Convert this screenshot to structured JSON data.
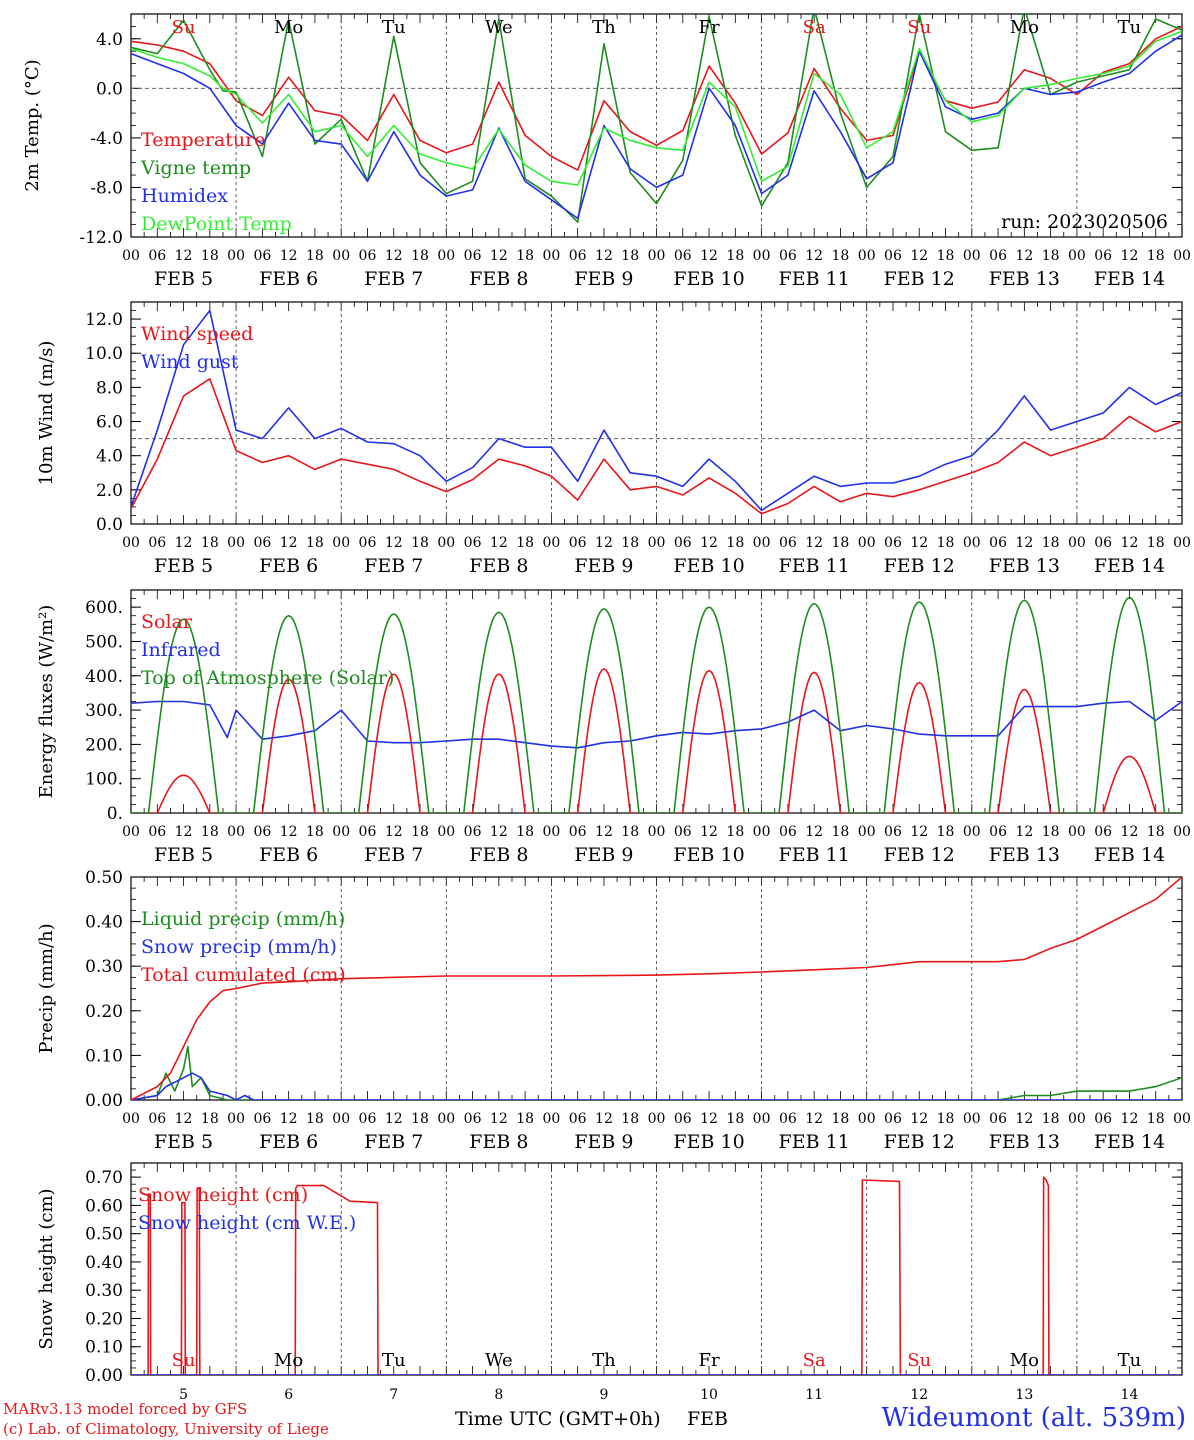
{
  "meta": {
    "run_label": "run: 2023020506",
    "model_credit": "MARv3.13 model forced by GFS",
    "lab_credit": "(c) Lab. of Climatology, University of Liege",
    "station": "Wideumont (alt. 539m)",
    "x_title": "Time UTC (GMT+0h)",
    "x_month": "FEB"
  },
  "colors": {
    "red": "#e8161a",
    "green": "#1f8c1f",
    "blue": "#2230e8",
    "lightgreen": "#33ee33",
    "grid": "#555555"
  },
  "time_axis": {
    "hour_labels": [
      "00",
      "06",
      "12",
      "18"
    ],
    "final_hour_label": "00",
    "date_labels": [
      "FEB  5",
      "FEB  6",
      "FEB  7",
      "FEB  8",
      "FEB  9",
      "FEB 10",
      "FEB 11",
      "FEB 12",
      "FEB 13",
      "FEB 14"
    ],
    "weekdays": [
      "Su",
      "Mo",
      "Tu",
      "We",
      "Th",
      "Fr",
      "Sa",
      "Su",
      "Mo",
      "Tu"
    ],
    "weekday_colors": [
      "red",
      "black",
      "black",
      "black",
      "black",
      "black",
      "red",
      "red",
      "black",
      "black"
    ],
    "bottom_day_numbers": [
      "5",
      "6",
      "7",
      "8",
      "9",
      "10",
      "11",
      "12",
      "13",
      "14"
    ]
  },
  "chart_data": [
    {
      "type": "line",
      "ylabel": "2m Temp. (°C)",
      "ylim": [
        -12,
        6
      ],
      "yticks": [
        "4.0",
        "0.0",
        "-4.0",
        "-8.0",
        "-12.0"
      ],
      "ytick_values": [
        4,
        0,
        -4,
        -8,
        -12
      ],
      "reference_line": 0,
      "x_unit": "hours since FEB 5 00 UTC",
      "series": [
        {
          "name": "Temperature",
          "color": "red",
          "x": [
            0,
            6,
            12,
            18,
            21,
            24,
            30,
            36,
            42,
            48,
            54,
            60,
            66,
            72,
            78,
            84,
            90,
            96,
            102,
            108,
            114,
            120,
            126,
            132,
            138,
            144,
            150,
            156,
            162,
            168,
            174,
            180,
            186,
            192,
            198,
            204,
            210,
            216,
            222,
            228,
            234,
            240
          ],
          "y": [
            3.8,
            3.5,
            3.0,
            2.0,
            0.5,
            -1.0,
            -2.2,
            0.9,
            -1.8,
            -2.2,
            -4.2,
            -0.5,
            -4.2,
            -5.2,
            -4.5,
            0.5,
            -3.8,
            -5.5,
            -6.6,
            -1.0,
            -3.5,
            -4.6,
            -3.4,
            1.8,
            -1.2,
            -5.3,
            -3.6,
            1.6,
            -1.6,
            -4.2,
            -3.8,
            3.0,
            -1.0,
            -1.6,
            -1.1,
            1.5,
            0.8,
            -0.5,
            1.3,
            2.0,
            4.0,
            5.0
          ]
        },
        {
          "name": "Vigne temp",
          "color": "green",
          "x": [
            0,
            6,
            12,
            18,
            21,
            24,
            30,
            36,
            42,
            48,
            54,
            60,
            66,
            72,
            78,
            84,
            90,
            96,
            102,
            108,
            114,
            120,
            126,
            132,
            138,
            144,
            150,
            156,
            162,
            168,
            174,
            180,
            186,
            192,
            198,
            204,
            210,
            216,
            222,
            228,
            234,
            240
          ],
          "y": [
            3.3,
            2.8,
            5.5,
            1.5,
            -0.2,
            -0.3,
            -5.5,
            5.5,
            -4.5,
            -2.5,
            -7.5,
            4.2,
            -6.0,
            -8.5,
            -7.5,
            5.6,
            -7.3,
            -8.7,
            -10.8,
            3.6,
            -6.8,
            -9.3,
            -5.8,
            5.8,
            -3.8,
            -9.5,
            -6.0,
            6.5,
            -2.0,
            -8.0,
            -5.5,
            6.0,
            -3.5,
            -5.0,
            -4.8,
            6.5,
            -0.5,
            0.5,
            1.0,
            1.5,
            5.6,
            4.7
          ]
        },
        {
          "name": "Humidex",
          "color": "blue",
          "x": [
            0,
            6,
            12,
            18,
            21,
            24,
            30,
            36,
            42,
            48,
            54,
            60,
            66,
            72,
            78,
            84,
            90,
            96,
            102,
            108,
            114,
            120,
            126,
            132,
            138,
            144,
            150,
            156,
            162,
            168,
            174,
            180,
            186,
            192,
            198,
            204,
            210,
            216,
            222,
            228,
            234,
            240
          ],
          "y": [
            2.8,
            2.0,
            1.2,
            0.0,
            -1.5,
            -3.0,
            -4.5,
            -1.2,
            -4.2,
            -4.5,
            -7.5,
            -3.5,
            -7.0,
            -8.7,
            -8.2,
            -3.2,
            -7.5,
            -9.0,
            -10.5,
            -3.0,
            -6.5,
            -8.0,
            -7.0,
            0.0,
            -3.0,
            -8.5,
            -7.0,
            -0.2,
            -3.5,
            -7.3,
            -6.0,
            3.0,
            -1.5,
            -2.5,
            -2.0,
            0.0,
            -0.5,
            -0.3,
            0.5,
            1.2,
            3.0,
            4.3
          ]
        },
        {
          "name": "DewPoint Temp",
          "color": "lightgreen",
          "x": [
            0,
            6,
            12,
            18,
            21,
            24,
            30,
            36,
            42,
            48,
            54,
            60,
            66,
            72,
            78,
            84,
            90,
            96,
            102,
            108,
            114,
            120,
            126,
            132,
            138,
            144,
            150,
            156,
            162,
            168,
            174,
            180,
            186,
            192,
            198,
            204,
            210,
            216,
            222,
            228,
            234,
            240
          ],
          "y": [
            3.2,
            2.5,
            2.0,
            1.0,
            0.0,
            -0.5,
            -2.8,
            -0.5,
            -3.5,
            -3.0,
            -5.5,
            -3.0,
            -5.3,
            -6.0,
            -6.5,
            -3.3,
            -6.2,
            -7.5,
            -7.8,
            -3.2,
            -4.2,
            -4.8,
            -5.0,
            0.5,
            -1.5,
            -7.5,
            -6.3,
            1.2,
            -0.5,
            -4.8,
            -3.5,
            3.2,
            -1.0,
            -2.7,
            -2.2,
            0.0,
            0.3,
            0.8,
            1.2,
            1.8,
            3.8,
            4.6
          ]
        }
      ]
    },
    {
      "type": "line",
      "ylabel": "10m Wind (m/s)",
      "ylim": [
        0,
        13
      ],
      "yticks": [
        "12.0",
        "10.0",
        "8.0",
        "6.0",
        "4.0",
        "2.0",
        "0.0"
      ],
      "ytick_values": [
        12,
        10,
        8,
        6,
        4,
        2,
        0
      ],
      "reference_line": 5,
      "x_unit": "hours since FEB 5 00 UTC",
      "series": [
        {
          "name": "Wind speed",
          "color": "red",
          "x": [
            0,
            6,
            12,
            18,
            24,
            30,
            36,
            42,
            48,
            54,
            60,
            66,
            72,
            78,
            84,
            90,
            96,
            102,
            108,
            114,
            120,
            126,
            132,
            138,
            144,
            150,
            156,
            162,
            168,
            174,
            180,
            186,
            192,
            198,
            204,
            210,
            216,
            222,
            228,
            234,
            240
          ],
          "y": [
            0.9,
            3.8,
            7.5,
            8.5,
            4.3,
            3.6,
            4.0,
            3.2,
            3.8,
            3.5,
            3.2,
            2.5,
            1.9,
            2.6,
            3.8,
            3.4,
            2.8,
            1.4,
            3.8,
            2.0,
            2.2,
            1.7,
            2.7,
            1.8,
            0.6,
            1.2,
            2.2,
            1.3,
            1.8,
            1.6,
            2.0,
            2.5,
            3.0,
            3.6,
            4.8,
            4.0,
            4.5,
            5.0,
            6.3,
            5.4,
            6.0
          ]
        },
        {
          "name": "Wind gust",
          "color": "blue",
          "x": [
            0,
            6,
            12,
            18,
            24,
            30,
            36,
            42,
            48,
            54,
            60,
            66,
            72,
            78,
            84,
            90,
            96,
            102,
            108,
            114,
            120,
            126,
            132,
            138,
            144,
            150,
            156,
            162,
            168,
            174,
            180,
            186,
            192,
            198,
            204,
            210,
            216,
            222,
            228,
            234,
            240
          ],
          "y": [
            1.0,
            5.5,
            10.5,
            12.5,
            5.5,
            5.0,
            6.8,
            5.0,
            5.6,
            4.8,
            4.7,
            4.0,
            2.5,
            3.3,
            5.0,
            4.5,
            4.5,
            2.5,
            5.5,
            3.0,
            2.8,
            2.2,
            3.8,
            2.5,
            0.8,
            1.8,
            2.8,
            2.2,
            2.4,
            2.4,
            2.8,
            3.5,
            4.0,
            5.5,
            7.5,
            5.5,
            6.0,
            6.5,
            8.0,
            7.0,
            7.7
          ]
        }
      ]
    },
    {
      "type": "line",
      "ylabel": "Energy fluxes (W/m²)",
      "ylim": [
        0,
        650
      ],
      "yticks": [
        "600.",
        "500.",
        "400.",
        "300.",
        "200.",
        "100.",
        "0."
      ],
      "ytick_values": [
        600,
        500,
        400,
        300,
        200,
        100,
        0
      ],
      "x_unit": "hours since FEB 5 00 UTC",
      "series": [
        {
          "name": "Solar",
          "color": "red",
          "peak_hours": [
            12,
            36,
            60,
            84,
            108,
            132,
            156,
            180,
            204,
            228
          ],
          "peak_values": [
            110,
            390,
            405,
            405,
            420,
            415,
            410,
            380,
            360,
            165
          ]
        },
        {
          "name": "Infrared",
          "color": "blue",
          "x": [
            0,
            6,
            12,
            18,
            22,
            24,
            30,
            36,
            42,
            48,
            54,
            60,
            66,
            72,
            78,
            84,
            90,
            96,
            102,
            108,
            114,
            120,
            126,
            132,
            138,
            144,
            150,
            156,
            162,
            168,
            174,
            180,
            186,
            192,
            198,
            204,
            210,
            216,
            222,
            228,
            234,
            240
          ],
          "y": [
            320,
            325,
            325,
            315,
            220,
            300,
            215,
            225,
            240,
            300,
            210,
            205,
            205,
            210,
            215,
            215,
            205,
            195,
            190,
            205,
            210,
            225,
            235,
            230,
            240,
            245,
            265,
            300,
            240,
            255,
            245,
            230,
            225,
            225,
            225,
            310,
            310,
            310,
            320,
            325,
            270,
            325
          ]
        },
        {
          "name": "Top of Atmosphere (Solar)",
          "color": "green",
          "peak_hours": [
            12,
            36,
            60,
            84,
            108,
            132,
            156,
            180,
            204,
            228
          ],
          "peak_values": [
            565,
            575,
            580,
            585,
            595,
            600,
            610,
            615,
            620,
            628
          ]
        }
      ]
    },
    {
      "type": "line",
      "ylabel": "Precip (mm/h)",
      "ylim": [
        0,
        0.5
      ],
      "yticks": [
        "0.50",
        "0.40",
        "0.30",
        "0.20",
        "0.10",
        "0.00"
      ],
      "ytick_values": [
        0.5,
        0.4,
        0.3,
        0.2,
        0.1,
        0.0
      ],
      "x_unit": "hours since FEB 5 00 UTC",
      "series": [
        {
          "name": "Liquid precip (mm/h)",
          "color": "green",
          "x": [
            0,
            6,
            8,
            10,
            12,
            13,
            14,
            16,
            18,
            22,
            24,
            96,
            180,
            198,
            204,
            210,
            216,
            222,
            228,
            234,
            240
          ],
          "y": [
            0.0,
            0.01,
            0.06,
            0.02,
            0.07,
            0.12,
            0.03,
            0.05,
            0.01,
            0.0,
            0.0,
            0.0,
            0.0,
            0.0,
            0.01,
            0.01,
            0.02,
            0.02,
            0.02,
            0.03,
            0.05
          ]
        },
        {
          "name": "Snow precip (mm/h)",
          "color": "blue",
          "x": [
            0,
            6,
            8,
            10,
            12,
            14,
            16,
            18,
            22,
            24,
            26,
            28,
            48,
            96,
            144,
            180,
            198,
            204,
            216,
            240
          ],
          "y": [
            0.0,
            0.01,
            0.03,
            0.04,
            0.05,
            0.06,
            0.05,
            0.02,
            0.01,
            0.0,
            0.01,
            0.0,
            0.0,
            0.0,
            0.0,
            0.0,
            0.0,
            0.0,
            0.0,
            0.0
          ]
        },
        {
          "name": "Total cumulated (cm)",
          "color": "red",
          "x": [
            0,
            6,
            9,
            12,
            15,
            18,
            21,
            24,
            30,
            36,
            48,
            72,
            96,
            120,
            132,
            144,
            156,
            168,
            180,
            192,
            198,
            204,
            210,
            216,
            222,
            228,
            234,
            240
          ],
          "y": [
            0.0,
            0.03,
            0.06,
            0.12,
            0.18,
            0.22,
            0.245,
            0.25,
            0.262,
            0.265,
            0.272,
            0.278,
            0.278,
            0.28,
            0.283,
            0.287,
            0.292,
            0.297,
            0.31,
            0.31,
            0.31,
            0.315,
            0.34,
            0.36,
            0.39,
            0.42,
            0.45,
            0.5
          ]
        }
      ]
    },
    {
      "type": "line",
      "ylabel": "Snow height (cm)",
      "ylim": [
        0,
        0.75
      ],
      "yticks": [
        "0.70",
        "0.60",
        "0.50",
        "0.40",
        "0.30",
        "0.20",
        "0.10",
        "0.00"
      ],
      "ytick_values": [
        0.7,
        0.6,
        0.5,
        0.4,
        0.3,
        0.2,
        0.1,
        0.0
      ],
      "x_unit": "hours since FEB 5 00 UTC",
      "series": [
        {
          "name": "Snow height (cm)",
          "color": "red",
          "x": [
            0,
            3.9,
            4.0,
            4.4,
            4.5,
            11.5,
            11.6,
            12.3,
            12.4,
            15.0,
            15.1,
            15.6,
            15.7,
            37.5,
            37.6,
            38,
            44,
            50,
            56,
            56.3,
            56.4,
            166.9,
            167.0,
            175.5,
            175.7,
            208.3,
            208.4,
            209,
            209.5,
            209.6,
            240
          ],
          "y": [
            0,
            0,
            0.64,
            0.64,
            0,
            0,
            0.61,
            0.61,
            0,
            0,
            0.66,
            0.66,
            0,
            0,
            0.66,
            0.67,
            0.67,
            0.615,
            0.61,
            0.61,
            0,
            0,
            0.69,
            0.685,
            0,
            0,
            0.7,
            0.69,
            0.67,
            0,
            0
          ]
        },
        {
          "name": "Snow height (cm W.E.)",
          "color": "blue",
          "x": [
            0,
            240
          ],
          "y": [
            0,
            0
          ]
        }
      ]
    }
  ]
}
